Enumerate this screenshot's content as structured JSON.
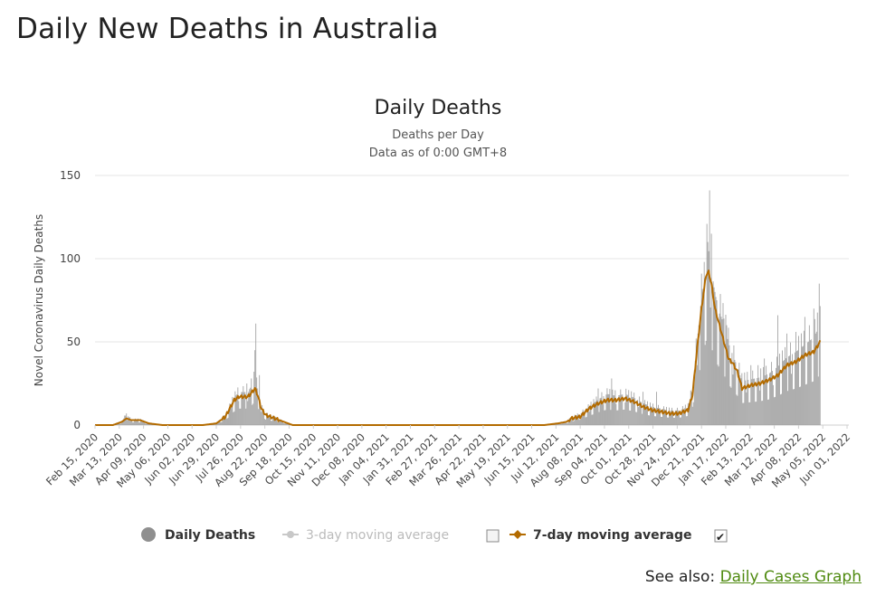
{
  "page": {
    "heading": "Daily New Deaths in Australia",
    "see_also_prefix": "See also:",
    "see_also_link": "Daily Cases Graph"
  },
  "colors": {
    "bars": "#9a9a9a",
    "avg7": "#b36b00",
    "avg3": "#c8c8c8",
    "grid": "#e6e6e6",
    "link": "#4f8a10"
  },
  "chart_data": {
    "type": "bar",
    "title": "Daily Deaths",
    "subtitle_line1": "Deaths per Day",
    "subtitle_line2": "Data as of 0:00 GMT+8",
    "ylabel": "Novel Coronavirus Daily Deaths",
    "xlabel": "",
    "ylim": [
      0,
      150
    ],
    "yticks": [
      0,
      50,
      100,
      150
    ],
    "grid": true,
    "legend_position": "bottom",
    "x_range_days": [
      0,
      839
    ],
    "x_tick_days": [
      0,
      27,
      54,
      81,
      108,
      135,
      162,
      189,
      216,
      243,
      270,
      297,
      324,
      351,
      378,
      405,
      432,
      459,
      486,
      513,
      540,
      567,
      594,
      621,
      648,
      675,
      702,
      729,
      756,
      783,
      810,
      837
    ],
    "x_tick_labels": [
      "Feb 15, 2020",
      "Mar 13, 2020",
      "Apr 09, 2020",
      "May 06, 2020",
      "Jun 02, 2020",
      "Jun 29, 2020",
      "Jul 26, 2020",
      "Aug 22, 2020",
      "Sep 18, 2020",
      "Oct 15, 2020",
      "Nov 11, 2020",
      "Dec 08, 2020",
      "Jan 04, 2021",
      "Jan 31, 2021",
      "Feb 27, 2021",
      "Mar 26, 2021",
      "Apr 22, 2021",
      "May 19, 2021",
      "Jun 15, 2021",
      "Jul 12, 2021",
      "Aug 08, 2021",
      "Sep 04, 2021",
      "Oct 01, 2021",
      "Oct 28, 2021",
      "Nov 24, 2021",
      "Dec 21, 2021",
      "Jan 17, 2022",
      "Feb 13, 2022",
      "Mar 12, 2022",
      "Apr 08, 2022",
      "May 05, 2022",
      "Jun 01, 2022"
    ],
    "series": [
      {
        "name": "Daily Deaths",
        "kind": "bar",
        "anchors": [
          [
            0,
            0
          ],
          [
            20,
            0
          ],
          [
            30,
            2
          ],
          [
            35,
            6
          ],
          [
            40,
            3
          ],
          [
            50,
            3
          ],
          [
            60,
            1
          ],
          [
            75,
            0
          ],
          [
            120,
            0
          ],
          [
            135,
            1
          ],
          [
            145,
            5
          ],
          [
            150,
            10
          ],
          [
            155,
            15
          ],
          [
            160,
            18
          ],
          [
            170,
            18
          ],
          [
            175,
            22
          ],
          [
            178,
            26
          ],
          [
            181,
            20
          ],
          [
            185,
            10
          ],
          [
            190,
            6
          ],
          [
            200,
            4
          ],
          [
            210,
            2
          ],
          [
            220,
            0
          ],
          [
            500,
            0
          ],
          [
            515,
            1
          ],
          [
            525,
            2
          ],
          [
            530,
            4
          ],
          [
            540,
            6
          ],
          [
            550,
            10
          ],
          [
            560,
            14
          ],
          [
            570,
            17
          ],
          [
            580,
            16
          ],
          [
            590,
            17
          ],
          [
            600,
            15
          ],
          [
            610,
            12
          ],
          [
            620,
            10
          ],
          [
            630,
            9
          ],
          [
            640,
            8
          ],
          [
            650,
            8
          ],
          [
            660,
            10
          ],
          [
            665,
            20
          ],
          [
            670,
            45
          ],
          [
            675,
            70
          ],
          [
            680,
            92
          ],
          [
            683,
            95
          ],
          [
            686,
            85
          ],
          [
            690,
            72
          ],
          [
            695,
            62
          ],
          [
            700,
            55
          ],
          [
            705,
            45
          ],
          [
            710,
            38
          ],
          [
            715,
            32
          ],
          [
            720,
            24
          ],
          [
            730,
            25
          ],
          [
            740,
            26
          ],
          [
            750,
            28
          ],
          [
            760,
            32
          ],
          [
            770,
            37
          ],
          [
            780,
            40
          ],
          [
            790,
            44
          ],
          [
            800,
            48
          ],
          [
            807,
            55
          ]
        ],
        "spikes": [
          [
            35,
            7
          ],
          [
            169,
            25
          ],
          [
            171,
            20
          ],
          [
            174,
            28
          ],
          [
            178,
            45
          ],
          [
            179,
            61
          ],
          [
            183,
            30
          ],
          [
            560,
            22
          ],
          [
            575,
            28
          ],
          [
            610,
            20
          ],
          [
            625,
            20
          ],
          [
            672,
            60
          ],
          [
            677,
            80
          ],
          [
            678,
            98
          ],
          [
            682,
            110
          ],
          [
            684,
            141
          ],
          [
            686,
            115
          ],
          [
            690,
            80
          ],
          [
            692,
            75
          ],
          [
            695,
            67
          ],
          [
            700,
            64
          ],
          [
            703,
            60
          ],
          [
            730,
            36
          ],
          [
            738,
            36
          ],
          [
            745,
            40
          ],
          [
            760,
            66
          ],
          [
            770,
            55
          ],
          [
            780,
            56
          ],
          [
            790,
            65
          ],
          [
            795,
            60
          ],
          [
            800,
            70
          ],
          [
            806,
            85
          ]
        ]
      },
      {
        "name": "3-day moving average",
        "kind": "line",
        "visible": false
      },
      {
        "name": "7-day moving average",
        "kind": "line",
        "anchors": [
          [
            0,
            0
          ],
          [
            20,
            0
          ],
          [
            30,
            2
          ],
          [
            35,
            4
          ],
          [
            40,
            3
          ],
          [
            50,
            3
          ],
          [
            60,
            1
          ],
          [
            75,
            0
          ],
          [
            120,
            0
          ],
          [
            135,
            1
          ],
          [
            145,
            5
          ],
          [
            150,
            10
          ],
          [
            155,
            15
          ],
          [
            160,
            17
          ],
          [
            170,
            17
          ],
          [
            175,
            20
          ],
          [
            178,
            22
          ],
          [
            181,
            18
          ],
          [
            185,
            10
          ],
          [
            190,
            6
          ],
          [
            200,
            4
          ],
          [
            210,
            2
          ],
          [
            220,
            0
          ],
          [
            500,
            0
          ],
          [
            515,
            1
          ],
          [
            525,
            2
          ],
          [
            530,
            4
          ],
          [
            540,
            5
          ],
          [
            550,
            10
          ],
          [
            560,
            13
          ],
          [
            570,
            15
          ],
          [
            580,
            15
          ],
          [
            590,
            16
          ],
          [
            600,
            14
          ],
          [
            610,
            11
          ],
          [
            620,
            9
          ],
          [
            630,
            8
          ],
          [
            640,
            7
          ],
          [
            650,
            7
          ],
          [
            660,
            9
          ],
          [
            665,
            18
          ],
          [
            670,
            45
          ],
          [
            675,
            70
          ],
          [
            680,
            90
          ],
          [
            683,
            92
          ],
          [
            686,
            85
          ],
          [
            690,
            70
          ],
          [
            695,
            60
          ],
          [
            700,
            50
          ],
          [
            705,
            40
          ],
          [
            710,
            37
          ],
          [
            715,
            32
          ],
          [
            720,
            22
          ],
          [
            730,
            24
          ],
          [
            740,
            25
          ],
          [
            750,
            27
          ],
          [
            760,
            30
          ],
          [
            770,
            36
          ],
          [
            780,
            38
          ],
          [
            790,
            42
          ],
          [
            800,
            44
          ],
          [
            807,
            50
          ]
        ]
      }
    ],
    "legend": [
      {
        "label": "Daily Deaths",
        "checked": null
      },
      {
        "label": "3-day moving average",
        "checked": false
      },
      {
        "label": "7-day moving average",
        "checked": true
      }
    ]
  }
}
